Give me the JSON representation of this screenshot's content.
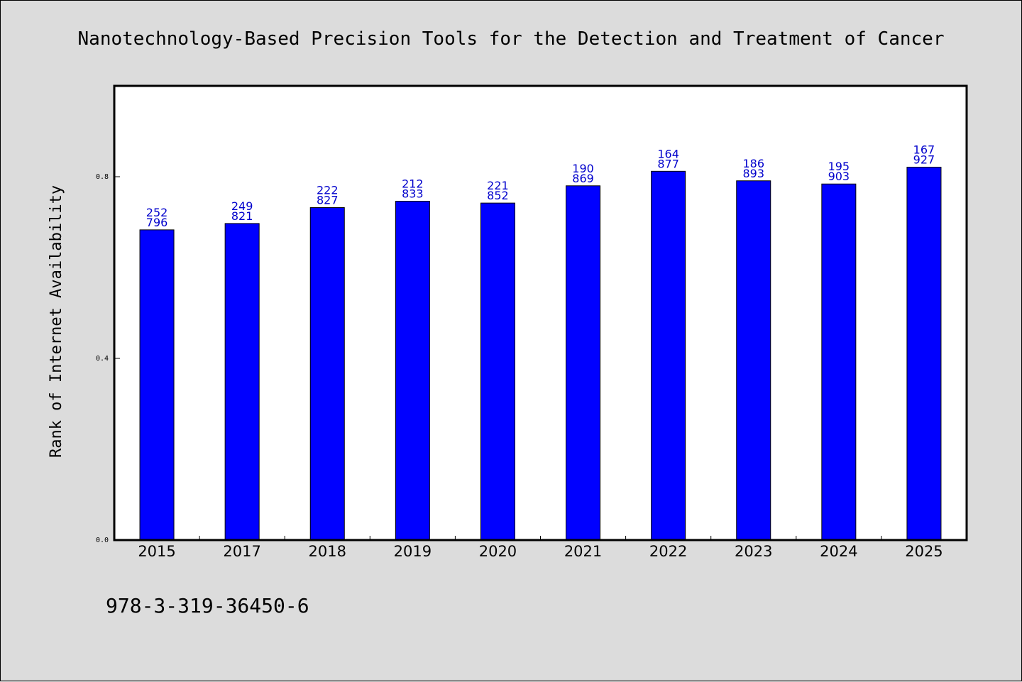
{
  "chart_data": {
    "type": "bar",
    "title": "Nanotechnology-Based Precision Tools for the Detection and Treatment of Cancer",
    "xlabel": "",
    "ylabel": "Rank of Internet Availability",
    "categories": [
      "2015",
      "2017",
      "2018",
      "2019",
      "2020",
      "2021",
      "2022",
      "2023",
      "2024",
      "2025"
    ],
    "values": [
      0.683,
      0.697,
      0.732,
      0.746,
      0.742,
      0.78,
      0.812,
      0.791,
      0.784,
      0.821
    ],
    "data_labels": [
      [
        "252",
        "796"
      ],
      [
        "249",
        "821"
      ],
      [
        "222",
        "827"
      ],
      [
        "212",
        "833"
      ],
      [
        "221",
        "852"
      ],
      [
        "190",
        "869"
      ],
      [
        "164",
        "877"
      ],
      [
        "186",
        "893"
      ],
      [
        "195",
        "903"
      ],
      [
        "167",
        "927"
      ]
    ],
    "yticks": [
      "0.0",
      "0.4",
      "0.8"
    ],
    "ytick_values": [
      0.0,
      0.4,
      0.8
    ],
    "ylim": [
      0,
      1.0
    ],
    "grid": false,
    "legend": "none",
    "bar_color": "#0000ff",
    "label_color": "#0000cc"
  },
  "footer": {
    "isbn": "978-3-319-36450-6"
  }
}
